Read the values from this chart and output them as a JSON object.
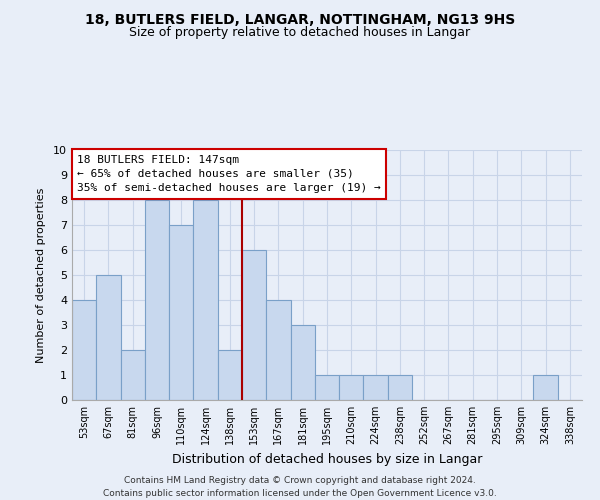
{
  "title1": "18, BUTLERS FIELD, LANGAR, NOTTINGHAM, NG13 9HS",
  "title2": "Size of property relative to detached houses in Langar",
  "xlabel": "Distribution of detached houses by size in Langar",
  "ylabel": "Number of detached properties",
  "bar_labels": [
    "53sqm",
    "67sqm",
    "81sqm",
    "96sqm",
    "110sqm",
    "124sqm",
    "138sqm",
    "153sqm",
    "167sqm",
    "181sqm",
    "195sqm",
    "210sqm",
    "224sqm",
    "238sqm",
    "252sqm",
    "267sqm",
    "281sqm",
    "295sqm",
    "309sqm",
    "324sqm",
    "338sqm"
  ],
  "bar_values": [
    4,
    5,
    2,
    8,
    7,
    8,
    2,
    6,
    4,
    3,
    1,
    1,
    1,
    1,
    0,
    0,
    0,
    0,
    0,
    1,
    0
  ],
  "bar_color": "#c8d8ee",
  "bar_edge_color": "#7aa0c8",
  "subject_line_color": "#aa0000",
  "subject_line_index": 7,
  "ylim": [
    0,
    10
  ],
  "yticks": [
    0,
    1,
    2,
    3,
    4,
    5,
    6,
    7,
    8,
    9,
    10
  ],
  "grid_color": "#c8d4e8",
  "annotation_title": "18 BUTLERS FIELD: 147sqm",
  "annotation_line1": "← 65% of detached houses are smaller (35)",
  "annotation_line2": "35% of semi-detached houses are larger (19) →",
  "annotation_box_color": "#ffffff",
  "annotation_box_edge": "#cc0000",
  "footer1": "Contains HM Land Registry data © Crown copyright and database right 2024.",
  "footer2": "Contains public sector information licensed under the Open Government Licence v3.0.",
  "bg_color": "#e8eef8",
  "plot_bg_color": "#e8eef8"
}
